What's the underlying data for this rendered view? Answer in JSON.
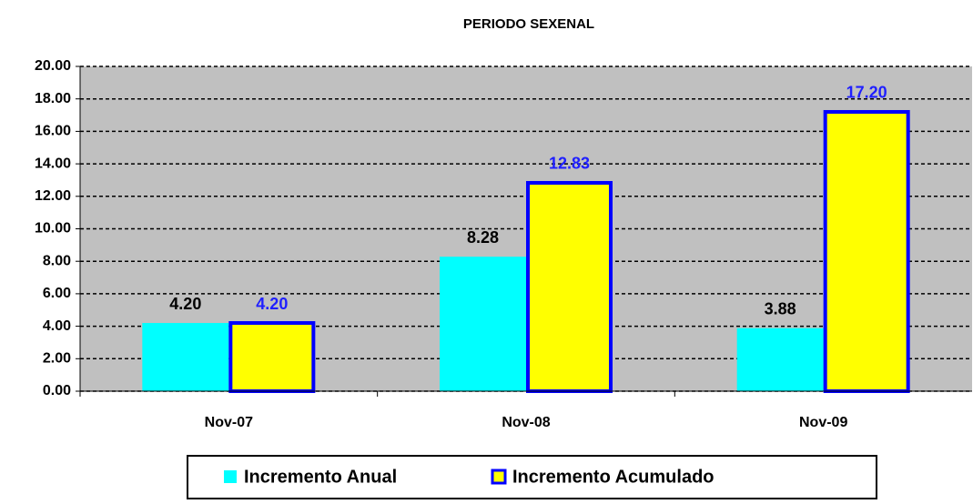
{
  "chart_data": {
    "type": "bar",
    "title": "PERIODO SEXENAL",
    "categories": [
      "Nov-07",
      "Nov-08",
      "Nov-09"
    ],
    "series": [
      {
        "name": "Incremento Anual",
        "color": "#00ffff",
        "label_color": "#000000",
        "values": [
          4.2,
          8.28,
          3.88
        ],
        "value_labels": [
          "4.20",
          "8.28",
          "3.88"
        ]
      },
      {
        "name": "Incremento Acumulado",
        "color": "#ffff00",
        "edgecolor": "#0000ff",
        "label_color": "#1f1fff",
        "values": [
          4.2,
          12.83,
          17.2
        ],
        "value_labels": [
          "4.20",
          "12.83",
          "17.20"
        ]
      }
    ],
    "ylim": [
      0,
      20
    ],
    "yticks": [
      {
        "value": 0,
        "label": "0.00"
      },
      {
        "value": 2,
        "label": "2.00"
      },
      {
        "value": 4,
        "label": "4.00"
      },
      {
        "value": 6,
        "label": "6.00"
      },
      {
        "value": 8,
        "label": "8.00"
      },
      {
        "value": 10,
        "label": "10.00"
      },
      {
        "value": 12,
        "label": "12.00"
      },
      {
        "value": 14,
        "label": "14.00"
      },
      {
        "value": 16,
        "label": "16.00"
      },
      {
        "value": 18,
        "label": "18.00"
      },
      {
        "value": 20,
        "label": "20.00"
      }
    ],
    "grid": true,
    "plot_background": "#c0c0c0",
    "legend": "bottom"
  }
}
